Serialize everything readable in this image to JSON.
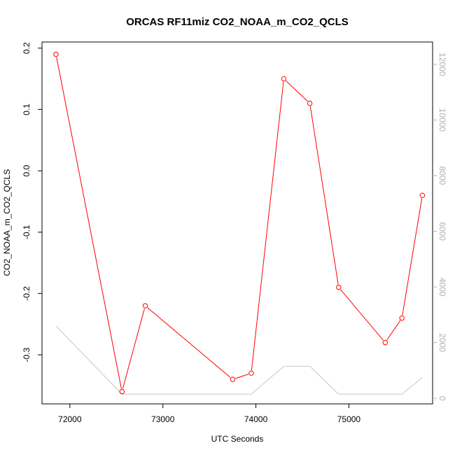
{
  "chart_data": {
    "type": "line",
    "title": "ORCAS RF11miz CO2_NOAA_m_CO2_QCLS",
    "xlabel": "UTC Seconds",
    "ylabel": "CO2_NOAA_m_CO2_QCLS",
    "xlim": [
      71700,
      75900
    ],
    "ylim": [
      -0.38,
      0.21
    ],
    "y2lim": [
      -200,
      12800
    ],
    "x_ticks": [
      72000,
      73000,
      74000,
      75000
    ],
    "y_ticks": [
      -0.3,
      -0.2,
      -0.1,
      0.0,
      0.1,
      0.2
    ],
    "y_tick_labels": [
      "-0.3",
      "-0.2",
      "-0.1",
      "0.0",
      "0.1",
      "0.2"
    ],
    "y2_ticks": [
      0,
      2000,
      4000,
      6000,
      8000,
      10000,
      12000
    ],
    "grid": false,
    "series": [
      {
        "axis": "left",
        "color": "#ff0000",
        "marker": "open-circle",
        "x": [
          71850,
          72560,
          72810,
          73750,
          73950,
          74300,
          74580,
          74890,
          75390,
          75570,
          75790
        ],
        "y": [
          0.19,
          -0.36,
          -0.22,
          -0.34,
          -0.33,
          0.15,
          0.11,
          -0.19,
          -0.28,
          -0.24,
          -0.04
        ]
      },
      {
        "axis": "right",
        "color": "#c8c8c8",
        "marker": "none",
        "x": [
          71850,
          72560,
          72810,
          73750,
          73950,
          74300,
          74580,
          74890,
          75390,
          75570,
          75790
        ],
        "y": [
          2600,
          150,
          150,
          150,
          150,
          1150,
          1150,
          150,
          150,
          150,
          750
        ]
      }
    ]
  }
}
